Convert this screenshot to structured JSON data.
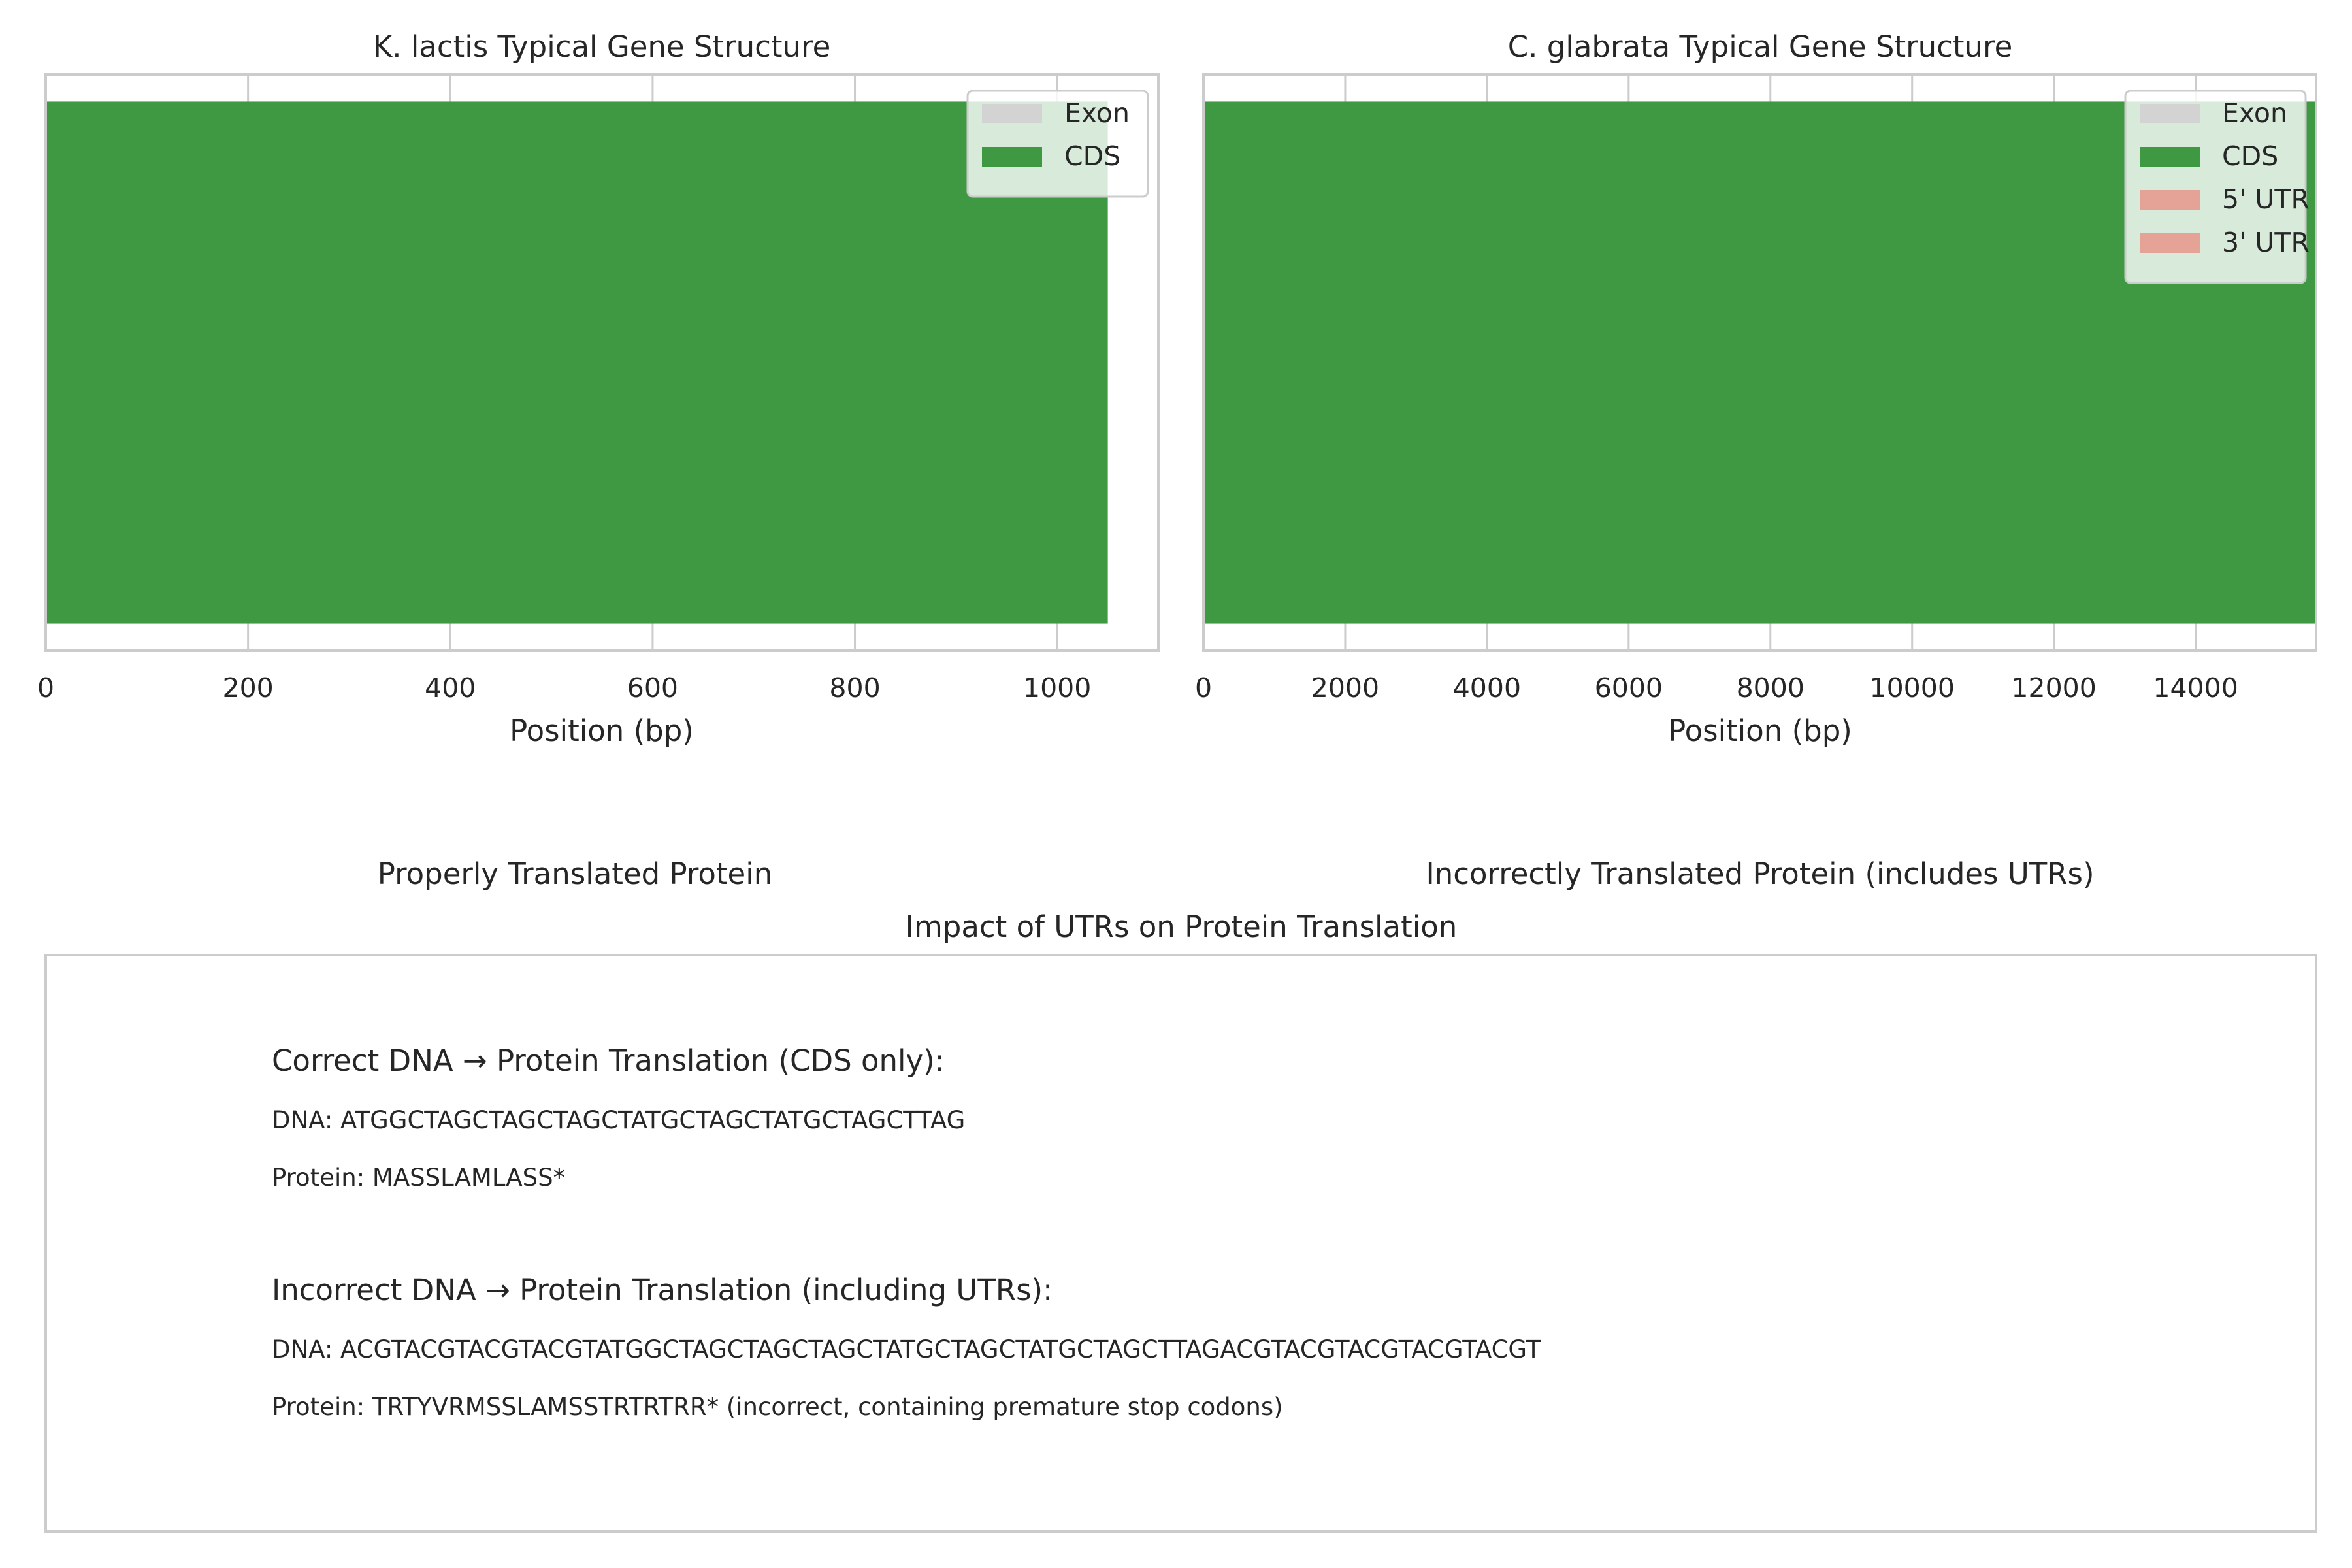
{
  "chart_data": [
    {
      "type": "bar",
      "orientation": "horizontal",
      "title": "K. lactis Typical Gene Structure",
      "xlabel": "Position (bp)",
      "xlim": [
        0,
        1100
      ],
      "xticks": [
        0,
        200,
        400,
        600,
        800,
        1000
      ],
      "grid": true,
      "legend_position": "upper-right",
      "legend": [
        "Exon",
        "CDS"
      ],
      "segments": [
        {
          "name": "Exon",
          "start": 0,
          "end": 1050,
          "color": "#d3d3d3"
        },
        {
          "name": "CDS",
          "start": 0,
          "end": 1050,
          "color": "#3f9842"
        }
      ]
    },
    {
      "type": "bar",
      "orientation": "horizontal",
      "title": "C. glabrata Typical Gene Structure",
      "xlabel": "Position (bp)",
      "xlim": [
        0,
        15700
      ],
      "xticks": [
        0,
        2000,
        4000,
        6000,
        8000,
        10000,
        12000,
        14000
      ],
      "grid": true,
      "legend_position": "upper-right",
      "legend": [
        "Exon",
        "CDS",
        "5' UTR",
        "3' UTR"
      ],
      "segments": [
        {
          "name": "Exon",
          "start": 0,
          "end": 15700,
          "color": "#d3d3d3"
        },
        {
          "name": "CDS",
          "start": 0,
          "end": 15700,
          "color": "#3f9842"
        }
      ],
      "legend_colors": {
        "Exon": "#d3d3d3",
        "CDS": "#3f9842",
        "5' UTR": "#e5a296",
        "3' UTR": "#e5a296"
      }
    }
  ],
  "subtitles": {
    "left": "Properly Translated Protein",
    "right": "Incorrectly Translated Protein (includes UTRs)"
  },
  "translation_panel": {
    "title": "Impact of UTRs on Protein Translation",
    "correct_heading": "Correct DNA → Protein Translation (CDS only):",
    "correct_dna": "DNA: ATGGCTAGCTAGCTAGCTATGCTAGCTATGCTAGCTTAG",
    "correct_protein": "Protein: MASSLAMLASS*",
    "incorrect_heading": "Incorrect DNA → Protein Translation (including UTRs):",
    "incorrect_dna": "DNA: ACGTACGTACGTACGTATGGCTAGCTAGCTAGCTATGCTAGCTATGCTAGCTTAGACGTACGTACGTACGTACGT",
    "incorrect_protein": "Protein: TRTYVRMSSLAMSSTRTRTRR* (incorrect, containing premature stop codons)"
  }
}
